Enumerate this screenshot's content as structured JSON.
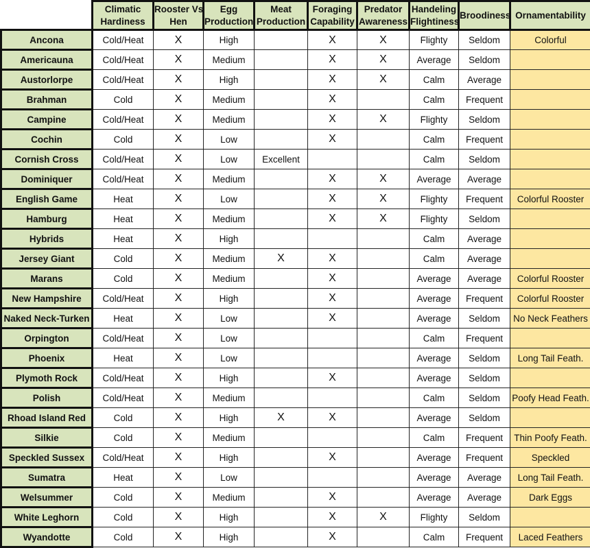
{
  "header": {
    "corner": "",
    "columns": [
      [
        "Climatic",
        "Hardiness"
      ],
      [
        "Rooster Vs.",
        "Hen"
      ],
      [
        "Egg",
        "Production"
      ],
      [
        "Meat",
        "Production"
      ],
      [
        "Foraging",
        "Capability"
      ],
      [
        "Predator",
        "Awareness"
      ],
      [
        "Handeling",
        "Flightiness"
      ],
      [
        "Broodiness"
      ],
      [
        "Ornamentability"
      ]
    ]
  },
  "colors": {
    "header_bg": "#d8e4bc",
    "label_bg": "#d8e4bc",
    "ornament_bg": "#fde7a1"
  },
  "rows": [
    [
      "Ancona",
      "Cold/Heat",
      "X",
      "High",
      "",
      "X",
      "X",
      "Flighty",
      "Seldom",
      "Colorful"
    ],
    [
      "Americauna",
      "Cold/Heat",
      "X",
      "Medium",
      "",
      "X",
      "X",
      "Average",
      "Seldom",
      ""
    ],
    [
      "Austorlorpe",
      "Cold/Heat",
      "X",
      "High",
      "",
      "X",
      "X",
      "Calm",
      "Average",
      ""
    ],
    [
      "Brahman",
      "Cold",
      "X",
      "Medium",
      "",
      "X",
      "",
      "Calm",
      "Frequent",
      ""
    ],
    [
      "Campine",
      "Cold/Heat",
      "X",
      "Medium",
      "",
      "X",
      "X",
      "Flighty",
      "Seldom",
      ""
    ],
    [
      "Cochin",
      "Cold",
      "X",
      "Low",
      "",
      "X",
      "",
      "Calm",
      "Frequent",
      ""
    ],
    [
      "Cornish Cross",
      "Cold/Heat",
      "X",
      "Low",
      "Excellent",
      "",
      "",
      "Calm",
      "Seldom",
      ""
    ],
    [
      "Dominiquer",
      "Cold/Heat",
      "X",
      "Medium",
      "",
      "X",
      "X",
      "Average",
      "Average",
      ""
    ],
    [
      "English Game",
      "Heat",
      "X",
      "Low",
      "",
      "X",
      "X",
      "Flighty",
      "Frequent",
      "Colorful Rooster"
    ],
    [
      "Hamburg",
      "Heat",
      "X",
      "Medium",
      "",
      "X",
      "X",
      "Flighty",
      "Seldom",
      ""
    ],
    [
      "Hybrids",
      "Heat",
      "X",
      "High",
      "",
      "",
      "",
      "Calm",
      "Average",
      ""
    ],
    [
      "Jersey Giant",
      "Cold",
      "X",
      "Medium",
      "X",
      "X",
      "",
      "Calm",
      "Average",
      ""
    ],
    [
      "Marans",
      "Cold",
      "X",
      "Medium",
      "",
      "X",
      "",
      "Average",
      "Average",
      "Colorful Rooster"
    ],
    [
      "New Hampshire",
      "Cold/Heat",
      "X",
      "High",
      "",
      "X",
      "",
      "Average",
      "Frequent",
      "Colorful Rooster"
    ],
    [
      "Naked Neck-Turken",
      "Heat",
      "X",
      "Low",
      "",
      "X",
      "",
      "Average",
      "Seldom",
      "No Neck Feathers"
    ],
    [
      "Orpington",
      "Cold/Heat",
      "X",
      "Low",
      "",
      "",
      "",
      "Calm",
      "Frequent",
      ""
    ],
    [
      "Phoenix",
      "Heat",
      "X",
      "Low",
      "",
      "",
      "",
      "Average",
      "Seldom",
      "Long Tail Feath."
    ],
    [
      "Plymoth Rock",
      "Cold/Heat",
      "X",
      "High",
      "",
      "X",
      "",
      "Average",
      "Seldom",
      ""
    ],
    [
      "Polish",
      "Cold/Heat",
      "X",
      "Medium",
      "",
      "",
      "",
      "Calm",
      "Seldom",
      "Poofy Head Feath."
    ],
    [
      "Rhoad Island Red",
      "Cold",
      "X",
      "High",
      "X",
      "X",
      "",
      "Average",
      "Seldom",
      ""
    ],
    [
      "Silkie",
      "Cold",
      "X",
      "Medium",
      "",
      "",
      "",
      "Calm",
      "Frequent",
      "Thin Poofy Feath."
    ],
    [
      "Speckled Sussex",
      "Cold/Heat",
      "X",
      "High",
      "",
      "X",
      "",
      "Average",
      "Frequent",
      "Speckled"
    ],
    [
      "Sumatra",
      "Heat",
      "X",
      "Low",
      "",
      "",
      "",
      "Average",
      "Average",
      "Long Tail Feath."
    ],
    [
      "Welsummer",
      "Cold",
      "X",
      "Medium",
      "",
      "X",
      "",
      "Average",
      "Average",
      "Dark Eggs"
    ],
    [
      "White Leghorn",
      "Cold",
      "X",
      "High",
      "",
      "X",
      "X",
      "Flighty",
      "Seldom",
      ""
    ],
    [
      "Wyandotte",
      "Cold",
      "X",
      "High",
      "",
      "X",
      "",
      "Calm",
      "Frequent",
      "Laced Feathers"
    ]
  ]
}
